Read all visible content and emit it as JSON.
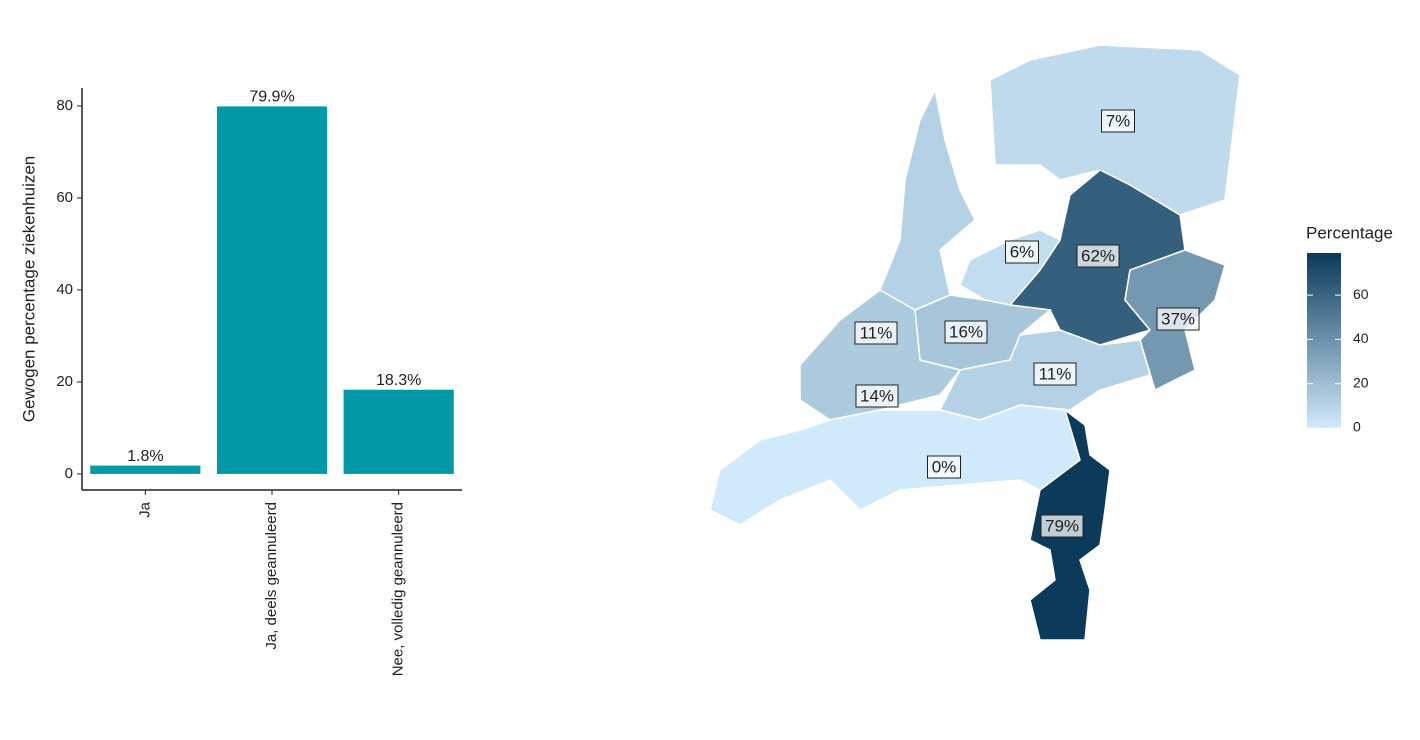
{
  "chart_data": [
    {
      "type": "bar",
      "y_label": "Gewogen percentage ziekenhuizen",
      "categories": [
        "Ja",
        "Ja, deels geannuleerd",
        "Nee, volledig geannuleerd"
      ],
      "values": [
        1.8,
        79.9,
        18.3
      ],
      "value_labels": [
        "1.8%",
        "79.9%",
        "18.3%"
      ],
      "color": "#0099a5",
      "ylim": [
        -3.5,
        83.9
      ],
      "yticks": [
        0,
        20,
        40,
        60,
        80
      ]
    },
    {
      "type": "map",
      "legend_title": "Percentage",
      "values": [
        7,
        62,
        37,
        6,
        11,
        16,
        14,
        11,
        0,
        79
      ],
      "value_labels": [
        "7%",
        "62%",
        "37%",
        "6%",
        "11%",
        "16%",
        "14%",
        "11%",
        "0%",
        "79%"
      ],
      "colors": [
        "#d0eafb",
        "#0b3a5a"
      ],
      "legend_ticks": [
        0,
        20,
        40,
        60
      ]
    }
  ]
}
